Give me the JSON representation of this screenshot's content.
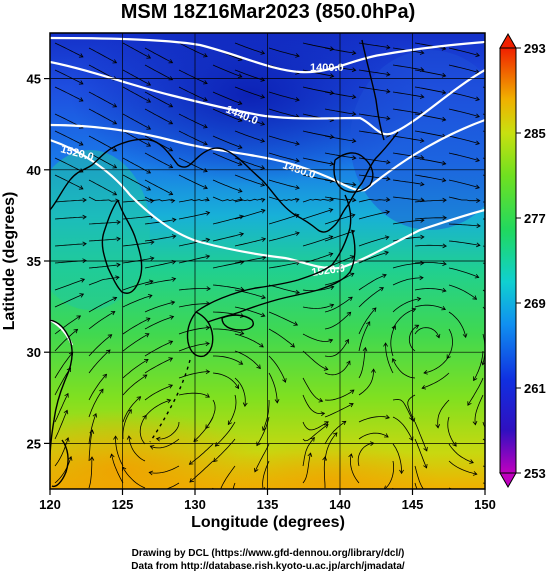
{
  "title": "MSM 18Z16Mar2023 (850.0hPa)",
  "xlabel": "Longitude (degrees)",
  "ylabel": "Latitude  (degrees)",
  "x_ticks": [
    "120",
    "125",
    "130",
    "135",
    "140",
    "145",
    "150"
  ],
  "y_ticks": [
    "45",
    "40",
    "35",
    "30",
    "25"
  ],
  "colorbar_ticks": [
    "293",
    "285",
    "277",
    "269",
    "261",
    "253"
  ],
  "contour_labels": [
    "1400.0",
    "1440.0",
    "1520.0",
    "1480.0",
    "1520.0"
  ],
  "credits": {
    "line1": "Drawing by DCL (https://www.gfd-dennou.org/library/dcl/)",
    "line2": "Data from http://database.rish.kyoto-u.ac.jp/arch/jmadata/"
  },
  "map_data": {
    "lon_range": [
      120,
      150
    ],
    "lat_range": [
      22.5,
      47.5
    ],
    "colorbar_range": [
      253,
      293
    ],
    "field": "temperature (K) shading, geopotential height contours, wind streamlines",
    "colors": {
      "cold": "#0a2fd0",
      "cool": "#1fa0e0",
      "mid": "#20d080",
      "warm": "#80e020",
      "hot": "#f0b000",
      "contour": "#ffffff",
      "coast": "#000000"
    }
  }
}
